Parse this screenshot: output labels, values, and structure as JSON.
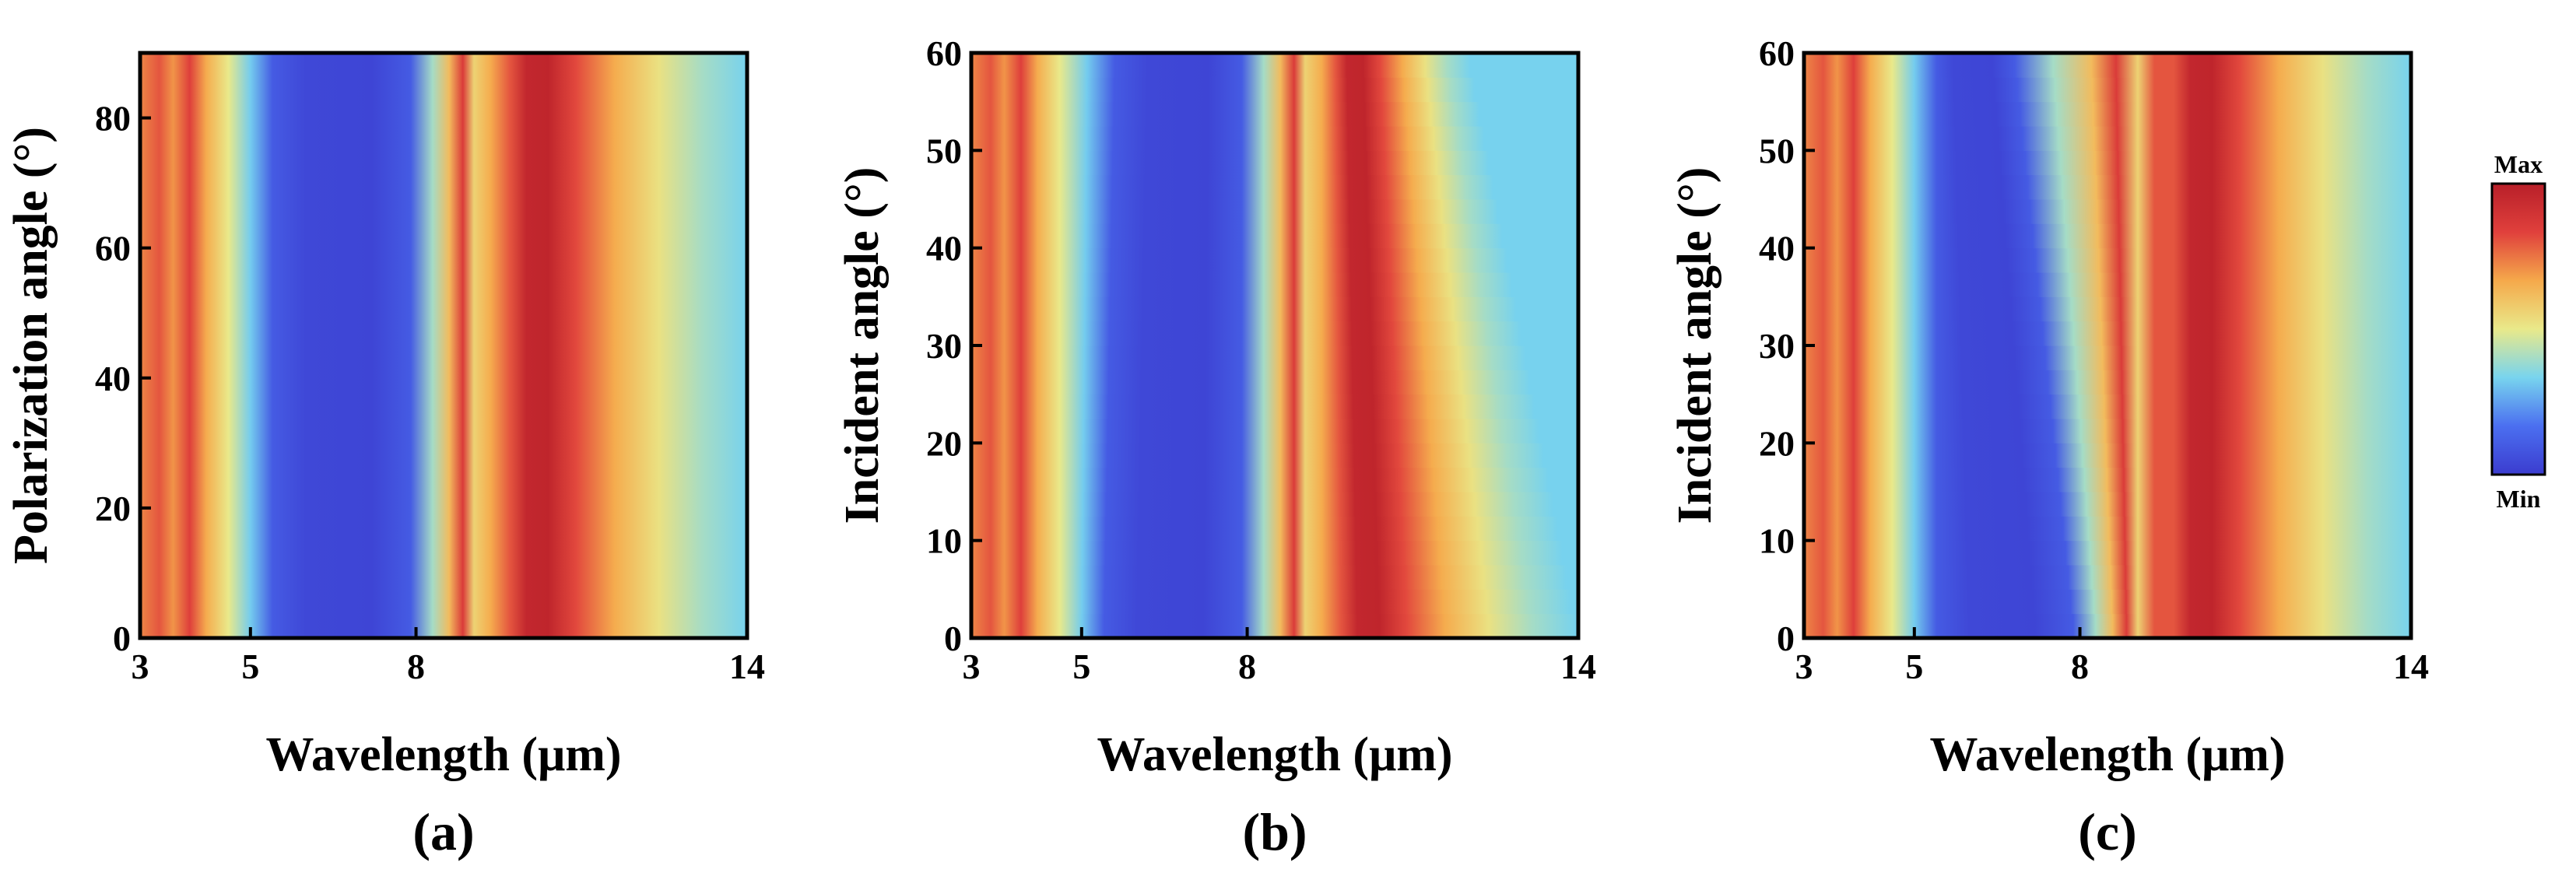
{
  "chart_data": [
    {
      "type": "heatmap",
      "panel_label": "(a)",
      "xlabel": "Wavelength (μm)",
      "ylabel": "Polarization angle (°)",
      "xlim": [
        3,
        14
      ],
      "ylim": [
        0,
        90
      ],
      "xticks": [
        "3",
        "5",
        "8",
        "14"
      ],
      "yticks": [
        "0",
        "20",
        "40",
        "60",
        "80"
      ],
      "xticks_values": [
        3,
        5,
        8,
        14
      ],
      "yticks_values": [
        0,
        20,
        40,
        60,
        80
      ],
      "bands": [
        {
          "x": 3.0,
          "v": 0.72,
          "shift": 0
        },
        {
          "x": 3.35,
          "v": 0.8,
          "shift": 0
        },
        {
          "x": 3.6,
          "v": 0.7,
          "shift": 0
        },
        {
          "x": 3.9,
          "v": 0.84,
          "shift": 0
        },
        {
          "x": 4.2,
          "v": 0.66,
          "shift": 0
        },
        {
          "x": 4.6,
          "v": 0.5,
          "shift": 0
        },
        {
          "x": 5.0,
          "v": 0.32,
          "shift": 0
        },
        {
          "x": 5.4,
          "v": 0.1,
          "shift": 0
        },
        {
          "x": 6.0,
          "v": 0.04,
          "shift": 0
        },
        {
          "x": 7.2,
          "v": 0.03,
          "shift": 0
        },
        {
          "x": 7.9,
          "v": 0.1,
          "shift": 0
        },
        {
          "x": 8.3,
          "v": 0.4,
          "shift": 0
        },
        {
          "x": 8.6,
          "v": 0.62,
          "shift": 0
        },
        {
          "x": 8.85,
          "v": 0.86,
          "shift": 0
        },
        {
          "x": 9.05,
          "v": 0.56,
          "shift": 0
        },
        {
          "x": 9.35,
          "v": 0.66,
          "shift": 0
        },
        {
          "x": 9.7,
          "v": 0.8,
          "shift": 0
        },
        {
          "x": 10.0,
          "v": 0.96,
          "shift": 0
        },
        {
          "x": 10.4,
          "v": 0.97,
          "shift": 0
        },
        {
          "x": 10.9,
          "v": 0.82,
          "shift": 0
        },
        {
          "x": 11.6,
          "v": 0.66,
          "shift": 0
        },
        {
          "x": 12.4,
          "v": 0.52,
          "shift": 0
        },
        {
          "x": 13.2,
          "v": 0.4,
          "shift": 0
        },
        {
          "x": 14.0,
          "v": 0.33,
          "shift": 0
        }
      ]
    },
    {
      "type": "heatmap",
      "panel_label": "(b)",
      "xlabel": "Wavelength (μm)",
      "ylabel": "Incident angle (°)",
      "xlim": [
        3,
        14
      ],
      "ylim": [
        0,
        60
      ],
      "xticks": [
        "3",
        "5",
        "8",
        "14"
      ],
      "yticks": [
        "0",
        "10",
        "20",
        "30",
        "40",
        "50",
        "60"
      ],
      "xticks_values": [
        3,
        5,
        8,
        14
      ],
      "yticks_values": [
        0,
        10,
        20,
        30,
        40,
        50,
        60
      ],
      "bands": [
        {
          "x": 3.0,
          "v": 0.72,
          "shift": 0
        },
        {
          "x": 3.35,
          "v": 0.8,
          "shift": 0
        },
        {
          "x": 3.6,
          "v": 0.7,
          "shift": 0
        },
        {
          "x": 3.9,
          "v": 0.84,
          "shift": 0
        },
        {
          "x": 4.2,
          "v": 0.66,
          "shift": 0
        },
        {
          "x": 4.6,
          "v": 0.5,
          "shift": 0
        },
        {
          "x": 5.0,
          "v": 0.32,
          "shift": 0.1
        },
        {
          "x": 5.4,
          "v": 0.1,
          "shift": 0.2
        },
        {
          "x": 6.0,
          "v": 0.04,
          "shift": 0.2
        },
        {
          "x": 7.2,
          "v": 0.03,
          "shift": 0.1
        },
        {
          "x": 7.9,
          "v": 0.1,
          "shift": 0
        },
        {
          "x": 8.3,
          "v": 0.4,
          "shift": 0
        },
        {
          "x": 8.6,
          "v": 0.62,
          "shift": 0
        },
        {
          "x": 8.85,
          "v": 0.86,
          "shift": 0
        },
        {
          "x": 9.05,
          "v": 0.56,
          "shift": 0
        },
        {
          "x": 9.35,
          "v": 0.66,
          "shift": 0
        },
        {
          "x": 9.7,
          "v": 0.8,
          "shift": -0.1
        },
        {
          "x": 10.0,
          "v": 0.96,
          "shift": -0.2
        },
        {
          "x": 10.4,
          "v": 0.97,
          "shift": -0.3
        },
        {
          "x": 10.9,
          "v": 0.82,
          "shift": -0.5
        },
        {
          "x": 11.6,
          "v": 0.66,
          "shift": -0.8
        },
        {
          "x": 12.4,
          "v": 0.52,
          "shift": -1.2
        },
        {
          "x": 13.2,
          "v": 0.4,
          "shift": -1.6
        },
        {
          "x": 14.0,
          "v": 0.33,
          "shift": -2.0
        }
      ]
    },
    {
      "type": "heatmap",
      "panel_label": "(c)",
      "xlabel": "Wavelength (μm)",
      "ylabel": "Incident angle (°)",
      "xlim": [
        3,
        14
      ],
      "ylim": [
        0,
        60
      ],
      "xticks": [
        "3",
        "5",
        "8",
        "14"
      ],
      "yticks": [
        "0",
        "10",
        "20",
        "30",
        "40",
        "50",
        "60"
      ],
      "xticks_values": [
        3,
        5,
        8,
        14
      ],
      "yticks_values": [
        0,
        10,
        20,
        30,
        40,
        50,
        60
      ],
      "bands": [
        {
          "x": 3.0,
          "v": 0.72,
          "shift": 0
        },
        {
          "x": 3.35,
          "v": 0.8,
          "shift": 0
        },
        {
          "x": 3.6,
          "v": 0.7,
          "shift": 0
        },
        {
          "x": 3.9,
          "v": 0.84,
          "shift": 0
        },
        {
          "x": 4.2,
          "v": 0.66,
          "shift": 0
        },
        {
          "x": 4.6,
          "v": 0.5,
          "shift": 0
        },
        {
          "x": 5.0,
          "v": 0.32,
          "shift": 0
        },
        {
          "x": 5.4,
          "v": 0.1,
          "shift": 0
        },
        {
          "x": 6.0,
          "v": 0.04,
          "shift": -0.3
        },
        {
          "x": 7.2,
          "v": 0.03,
          "shift": -0.8
        },
        {
          "x": 7.9,
          "v": 0.1,
          "shift": -1.1
        },
        {
          "x": 8.3,
          "v": 0.4,
          "shift": -0.8
        },
        {
          "x": 8.6,
          "v": 0.62,
          "shift": -0.4
        },
        {
          "x": 8.85,
          "v": 0.86,
          "shift": -0.2
        },
        {
          "x": 9.05,
          "v": 0.56,
          "shift": 0
        },
        {
          "x": 9.35,
          "v": 0.8,
          "shift": 0
        },
        {
          "x": 9.7,
          "v": 0.8,
          "shift": 0
        },
        {
          "x": 10.0,
          "v": 0.96,
          "shift": 0
        },
        {
          "x": 10.4,
          "v": 0.97,
          "shift": 0
        },
        {
          "x": 10.9,
          "v": 0.82,
          "shift": 0
        },
        {
          "x": 11.6,
          "v": 0.66,
          "shift": 0
        },
        {
          "x": 12.4,
          "v": 0.52,
          "shift": 0
        },
        {
          "x": 13.2,
          "v": 0.4,
          "shift": 0
        },
        {
          "x": 14.0,
          "v": 0.33,
          "shift": 0
        }
      ]
    }
  ],
  "colorbar": {
    "max_label": "Max",
    "min_label": "Min",
    "colormap": "jet",
    "stops": [
      "#3b3ccf",
      "#4b6ff0",
      "#78d4ee",
      "#e9e98a",
      "#f5a94b",
      "#e0403c",
      "#b81f29"
    ]
  }
}
